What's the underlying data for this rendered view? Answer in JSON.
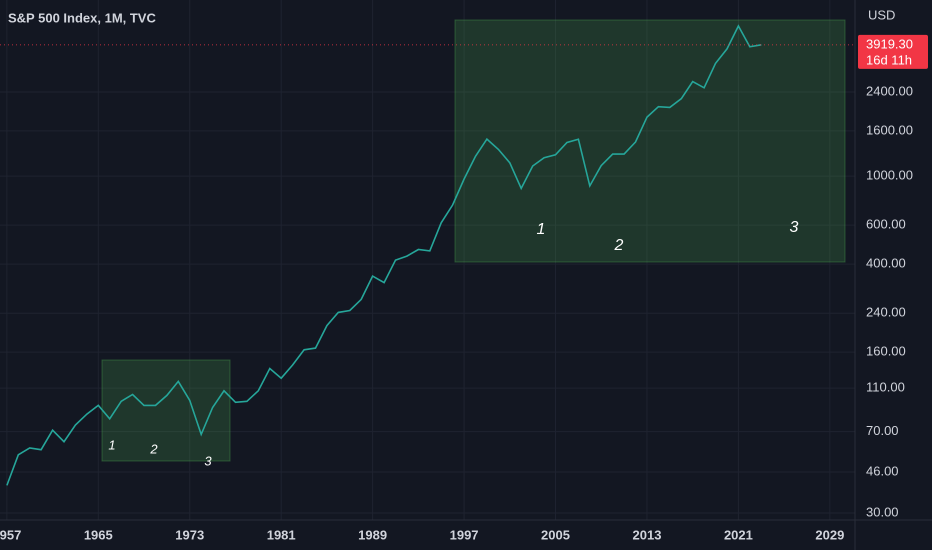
{
  "chart_data": {
    "type": "line",
    "title": "S&P 500 Index, 1M, TVC",
    "currency": "USD",
    "last_price": {
      "value": 3919.3,
      "label": "3919.30"
    },
    "countdown": "16d 11h",
    "x": [
      1957,
      1958,
      1959,
      1960,
      1961,
      1962,
      1963,
      1964,
      1965,
      1966,
      1967,
      1968,
      1969,
      1970,
      1971,
      1972,
      1973,
      1974,
      1975,
      1976,
      1977,
      1978,
      1979,
      1980,
      1981,
      1982,
      1983,
      1984,
      1985,
      1986,
      1987,
      1988,
      1989,
      1990,
      1991,
      1992,
      1993,
      1994,
      1995,
      1996,
      1997,
      1998,
      1999,
      2000,
      2001,
      2002,
      2003,
      2004,
      2005,
      2006,
      2007,
      2008,
      2009,
      2010,
      2011,
      2012,
      2013,
      2014,
      2015,
      2016,
      2017,
      2018,
      2019,
      2020,
      2021,
      2022,
      2023
    ],
    "series": [
      {
        "name": "S&P 500",
        "color": "#26a69a",
        "values": [
          40,
          55,
          59,
          58,
          71,
          63,
          75,
          84,
          92,
          80,
          96,
          103,
          92,
          92,
          102,
          118,
          97,
          68,
          90,
          107,
          95,
          96,
          107,
          135,
          122,
          140,
          164,
          167,
          211,
          242,
          247,
          277,
          353,
          330,
          417,
          435,
          466,
          459,
          615,
          740,
          970,
          1229,
          1469,
          1320,
          1148,
          880,
          1111,
          1211,
          1248,
          1418,
          1468,
          903,
          1115,
          1257,
          1257,
          1426,
          1848,
          2058,
          2043,
          2238,
          2673,
          2506,
          3230,
          3756,
          4766,
          3839,
          3919
        ]
      }
    ],
    "xlim": [
      1956.4,
      2031.2
    ],
    "xticks": [
      1957,
      1965,
      1973,
      1981,
      1989,
      1997,
      2005,
      2013,
      2021,
      2029
    ],
    "ylim": [
      27.9,
      6250
    ],
    "log_scale": true,
    "grid": true,
    "yticks": [
      {
        "value": 30,
        "label": "30.00"
      },
      {
        "value": 46,
        "label": "46.00"
      },
      {
        "value": 70,
        "label": "70.00"
      },
      {
        "value": 110,
        "label": "110.00"
      },
      {
        "value": 160,
        "label": "160.00"
      },
      {
        "value": 240,
        "label": "240.00"
      },
      {
        "value": 400,
        "label": "400.00"
      },
      {
        "value": 600,
        "label": "600.00"
      },
      {
        "value": 1000,
        "label": "1000.00"
      },
      {
        "value": 1600,
        "label": "1600.00"
      },
      {
        "value": 2400,
        "label": "2400.00"
      }
    ],
    "annotations": [
      [
        "1",
        "2",
        "3"
      ],
      [
        "1",
        "2",
        "3"
      ]
    ]
  }
}
